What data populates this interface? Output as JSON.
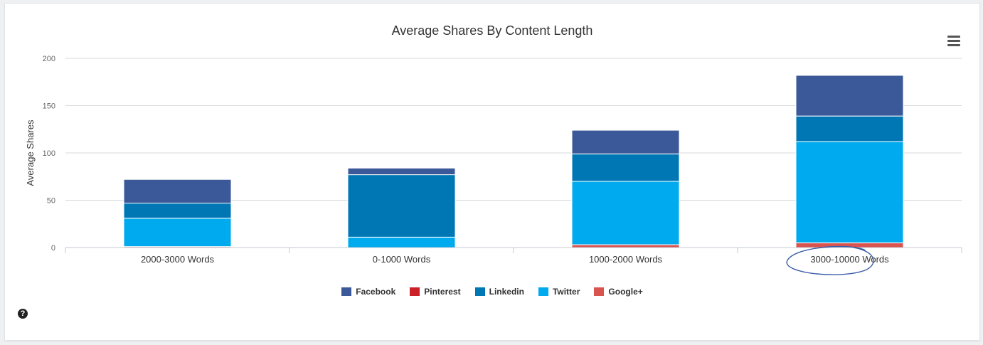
{
  "chart_data": {
    "type": "bar",
    "stacked": true,
    "title": "Average Shares By Content Length",
    "ylabel": "Average Shares",
    "xlabel": "",
    "ylim": [
      0,
      200
    ],
    "yticks": [
      0,
      50,
      100,
      150,
      200
    ],
    "grid": true,
    "legend_position": "bottom",
    "categories": [
      "2000-3000 Words",
      "0-1000 Words",
      "1000-2000 Words",
      "3000-10000 Words"
    ],
    "series": [
      {
        "name": "Google+",
        "color": "#d9534f",
        "values": [
          1,
          0,
          3,
          5
        ]
      },
      {
        "name": "Twitter",
        "color": "#00aaef",
        "values": [
          30,
          11,
          67,
          107
        ]
      },
      {
        "name": "Linkedin",
        "color": "#0077b5",
        "values": [
          16,
          66,
          29,
          27
        ]
      },
      {
        "name": "Pinterest",
        "color": "#cb2027",
        "values": [
          0,
          0,
          0,
          0
        ]
      },
      {
        "name": "Facebook",
        "color": "#3b5998",
        "values": [
          25,
          7,
          25,
          43
        ]
      }
    ],
    "legend_order": [
      "Facebook",
      "Pinterest",
      "Linkedin",
      "Twitter",
      "Google+"
    ],
    "annotation": {
      "type": "circle",
      "target_category": "3000-10000 Words",
      "color": "#3a5ca8"
    }
  },
  "help": {
    "icon": "question-circle-icon",
    "glyph": "?"
  },
  "menu": {
    "icon": "hamburger-menu-icon"
  }
}
